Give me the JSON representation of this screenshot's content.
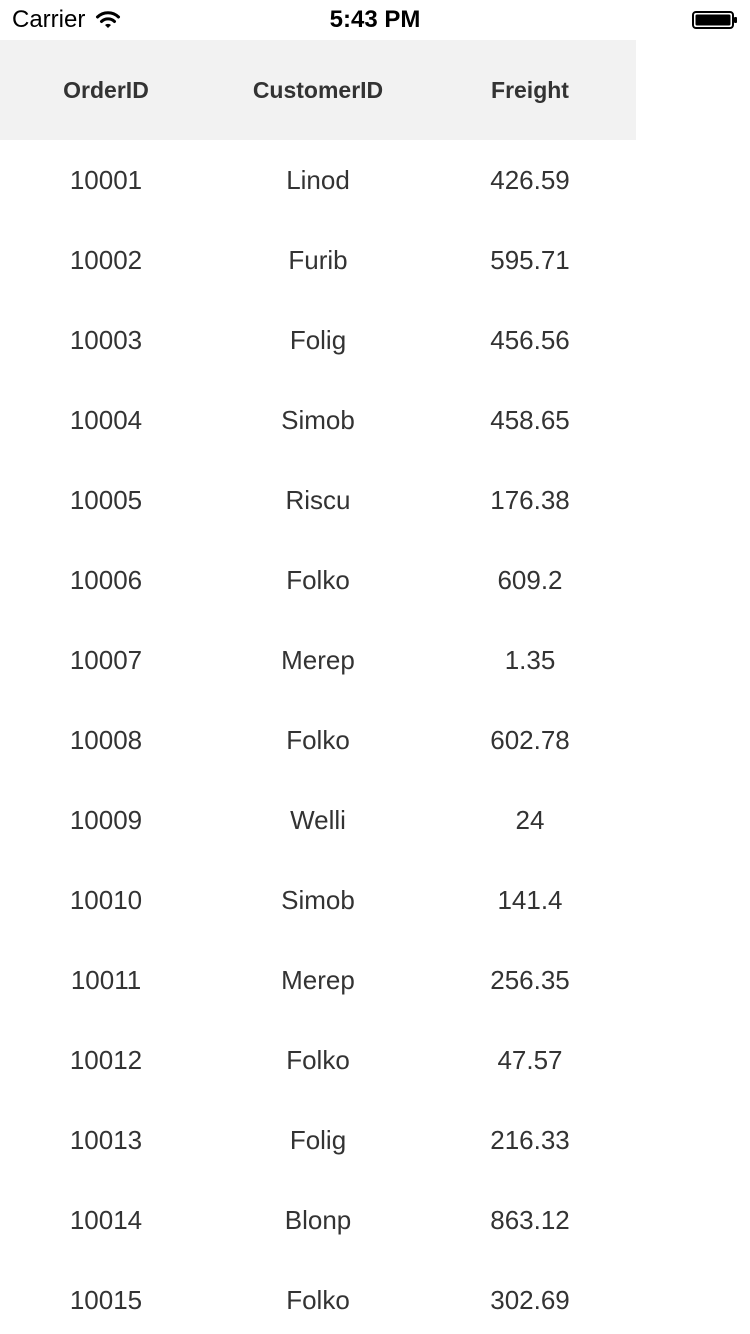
{
  "status_bar": {
    "carrier": "Carrier",
    "time": "5:43 PM",
    "battery_icon": "battery-full-icon",
    "wifi_icon": "wifi-icon"
  },
  "grid": {
    "columns": [
      "OrderID",
      "CustomerID",
      "Freight"
    ],
    "rows": [
      [
        "10001",
        "Linod",
        "426.59"
      ],
      [
        "10002",
        "Furib",
        "595.71"
      ],
      [
        "10003",
        "Folig",
        "456.56"
      ],
      [
        "10004",
        "Simob",
        "458.65"
      ],
      [
        "10005",
        "Riscu",
        "176.38"
      ],
      [
        "10006",
        "Folko",
        "609.2"
      ],
      [
        "10007",
        "Merep",
        "1.35"
      ],
      [
        "10008",
        "Folko",
        "602.78"
      ],
      [
        "10009",
        "Welli",
        "24"
      ],
      [
        "10010",
        "Simob",
        "141.4"
      ],
      [
        "10011",
        "Merep",
        "256.35"
      ],
      [
        "10012",
        "Folko",
        "47.57"
      ],
      [
        "10013",
        "Folig",
        "216.33"
      ],
      [
        "10014",
        "Blonp",
        "863.12"
      ],
      [
        "10015",
        "Folko",
        "302.69"
      ]
    ]
  }
}
